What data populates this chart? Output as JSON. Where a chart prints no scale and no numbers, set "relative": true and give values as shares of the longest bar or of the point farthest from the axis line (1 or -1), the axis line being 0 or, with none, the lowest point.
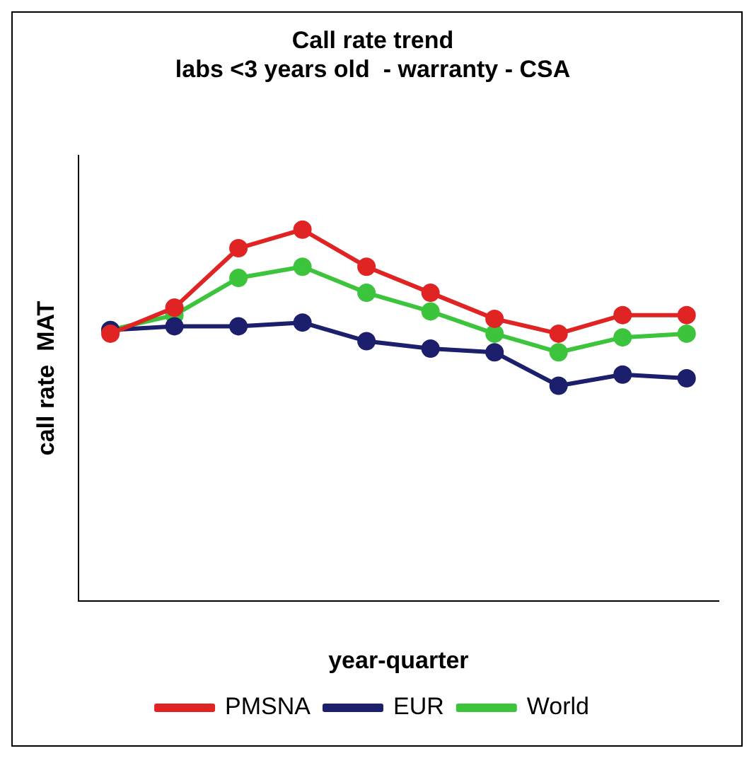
{
  "chart_data": {
    "type": "line",
    "title": "Call rate trend",
    "subtitle": "labs <3 years old  - warranty - CSA",
    "xlabel": "year-quarter",
    "ylabel": "call rate  MAT",
    "relative": true,
    "categories": [
      null,
      null,
      null,
      null,
      null,
      null,
      null,
      null,
      null,
      null
    ],
    "series": [
      {
        "name": "PMSNA",
        "color": "#e02424",
        "values": [
          0.72,
          0.79,
          0.95,
          1,
          0.9,
          0.83,
          0.76,
          0.72,
          0.77,
          0.77
        ]
      },
      {
        "name": "EUR",
        "color": "#1c1f6b",
        "values": [
          0.73,
          0.74,
          0.74,
          0.75,
          0.7,
          0.68,
          0.67,
          0.58,
          0.61,
          0.6
        ]
      },
      {
        "name": "World",
        "color": "#3cc43c",
        "values": [
          0.73,
          0.77,
          0.87,
          0.9,
          0.83,
          0.78,
          0.72,
          0.67,
          0.71,
          0.72
        ]
      }
    ],
    "legend": "bottom",
    "marker": "circle",
    "line_style": "solid"
  }
}
